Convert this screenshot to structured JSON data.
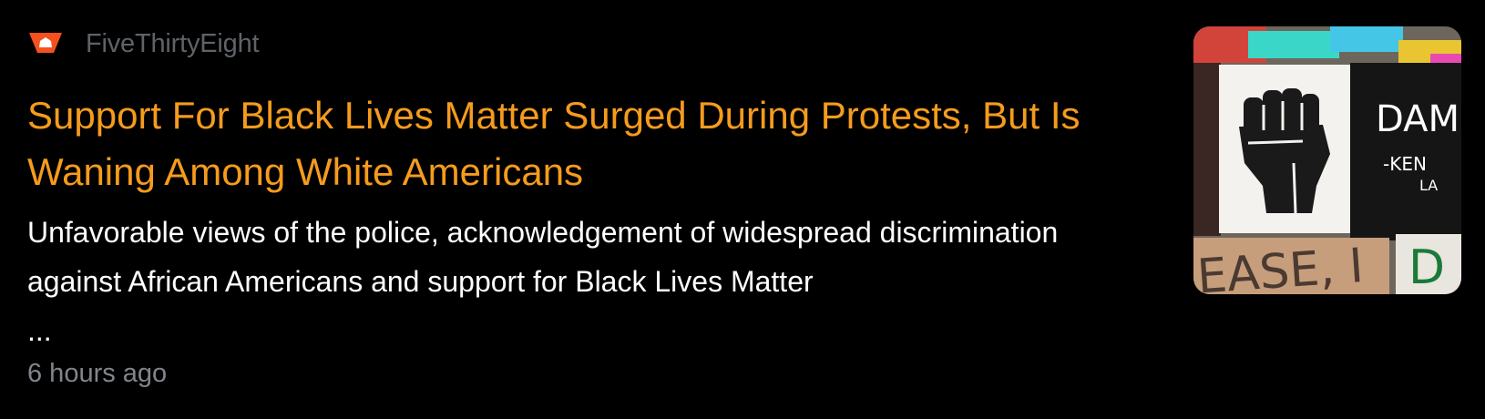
{
  "article": {
    "source": {
      "name": "FiveThirtyEight",
      "logo_icon": "fivethirtyeight-logo-icon",
      "logo_color": "#f4511e"
    },
    "headline": "Support For Black Lives Matter Surged During Protests, But Is Waning Among White Americans",
    "snippet": "Unfavorable views of the police, acknowledgement of widespread discrimination against African Americans and support for Black Lives Matter",
    "snippet_ellipsis": "...",
    "timestamp": "6 hours ago",
    "thumbnail": {
      "sign_text_right": "DAM",
      "sign_subtext": "-KEN",
      "sign_subtext_2": "LA",
      "sign_bottom_left": "EASE, I",
      "sign_bottom_right": "D"
    }
  },
  "colors": {
    "background": "#000000",
    "headline": "#f59b1d",
    "snippet": "#ffffff",
    "source": "#5f6368",
    "timestamp": "#80868b"
  }
}
